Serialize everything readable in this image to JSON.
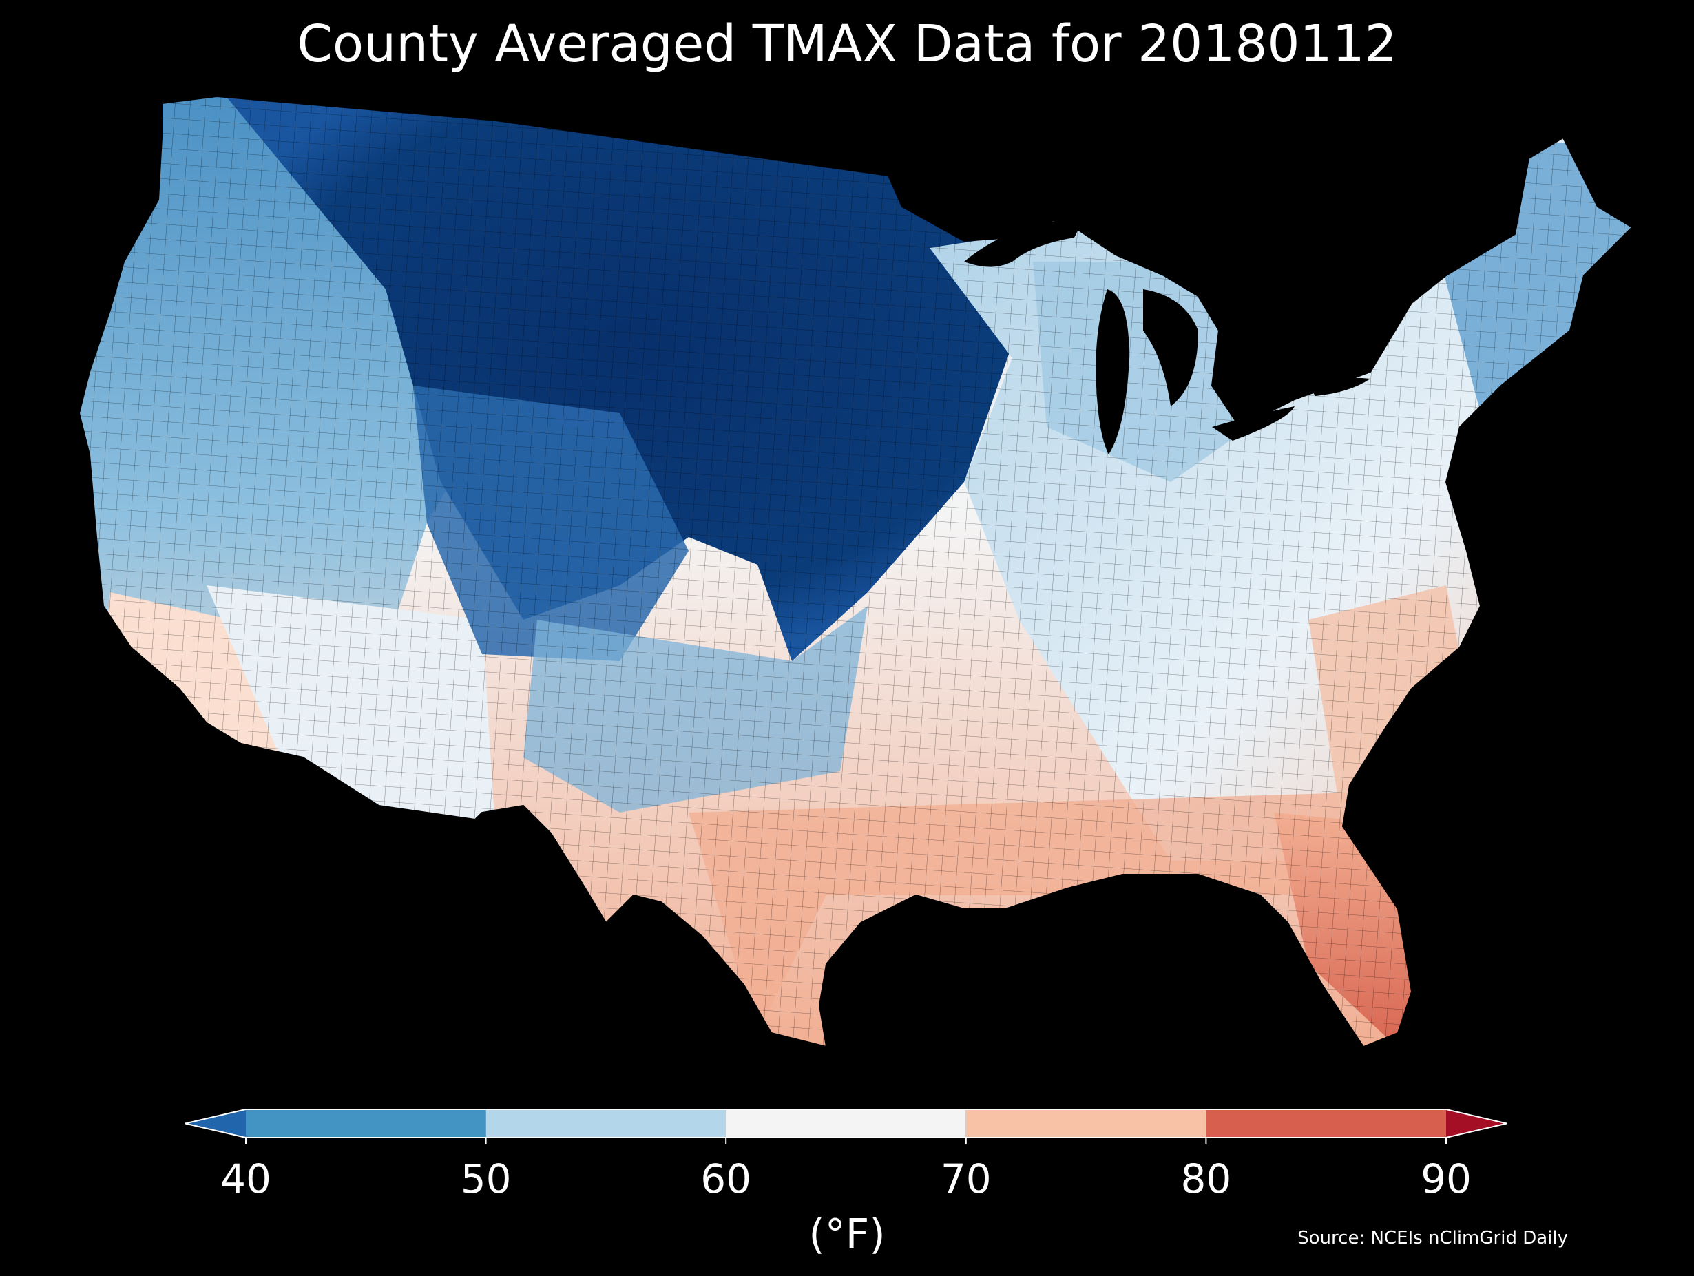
{
  "title": "County Averaged TMAX Data for 20180112",
  "colorbar": {
    "label": "(°F)",
    "ticks": [
      "40",
      "50",
      "60",
      "70",
      "80",
      "90"
    ],
    "bins": [
      {
        "from": 40,
        "to": 50,
        "color": "#4393c3"
      },
      {
        "from": 50,
        "to": 60,
        "color": "#b4d6ea"
      },
      {
        "from": 60,
        "to": 70,
        "color": "#f4f4f4"
      },
      {
        "from": 70,
        "to": 80,
        "color": "#f8c2a6"
      },
      {
        "from": 80,
        "to": 90,
        "color": "#d6604d"
      }
    ],
    "under_color": "#2166ac",
    "over_color": "#a50f26",
    "extend": "both"
  },
  "source": "Source: NCEIs nClimGrid Daily",
  "map": {
    "region": "contiguous-united-states",
    "variable": "TMAX",
    "date": "20180112",
    "background": "#000000",
    "county_border_color": "#000000",
    "regional_colors": {
      "northern-plains-core": "#08306b",
      "upper-midwest": "#0b3c7a",
      "rockies-cold": "#1f5aa0",
      "northwest-interior": "#4a90c4",
      "pacific-coast": "#8ec0df",
      "great-basin": "#a9cfe6",
      "southwest-desert": "#eef2f6",
      "southern-california": "#fbe0d2",
      "great-lakes-east": "#c9e1f0",
      "ohio-valley": "#e4eef6",
      "new-england": "#6fa8d4",
      "southeast": "#f8d3bf",
      "gulf-coast": "#f2ae92",
      "south-texas": "#ee9f80",
      "florida": "#e0755c"
    }
  }
}
